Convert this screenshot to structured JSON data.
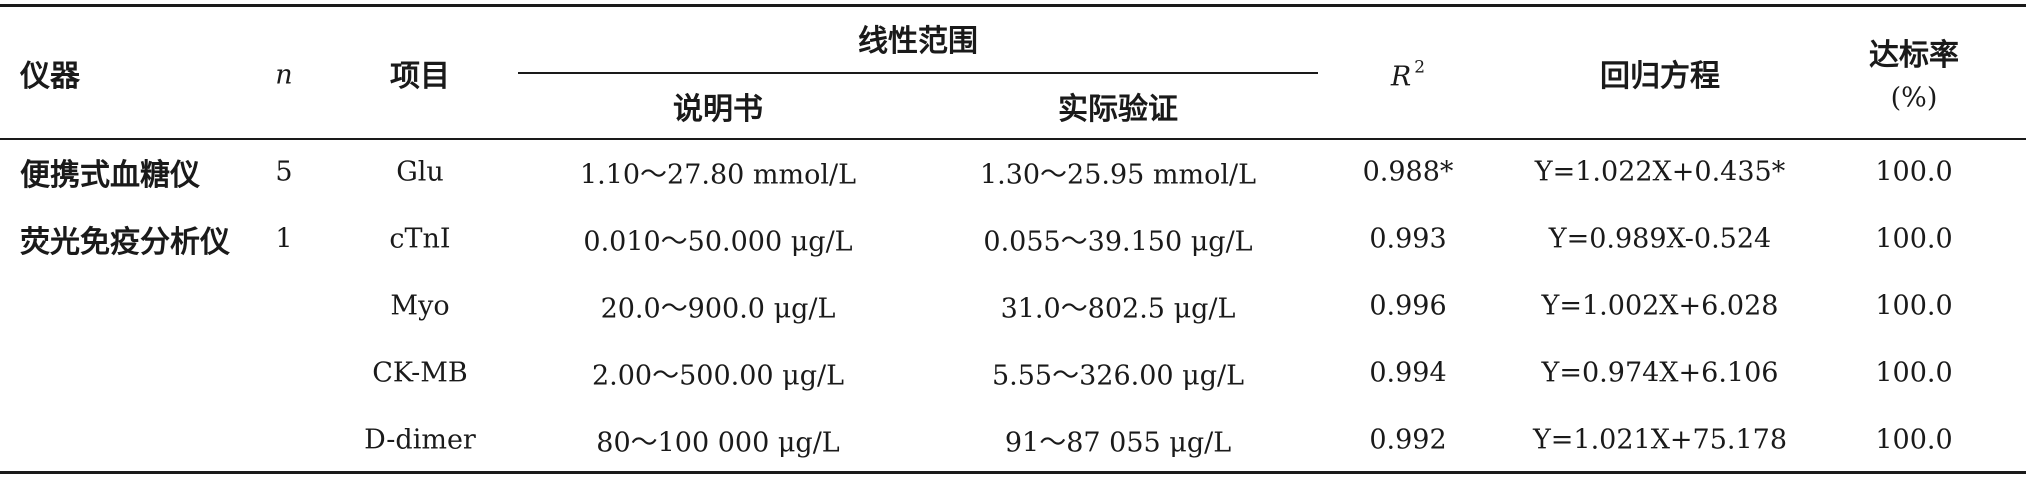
{
  "table": {
    "headers": {
      "instrument": "仪器",
      "n": "n",
      "item": "项目",
      "linear_range": "线性范围",
      "manual": "说明书",
      "actual": "实际验证",
      "r2": "R",
      "r2_sup": "2",
      "regression": "回归方程",
      "pass_rate_line1": "达标率",
      "pass_rate_line2": "(%)"
    },
    "rows": [
      {
        "instrument": "便携式血糖仪",
        "n": "5",
        "item": "Glu",
        "manual": "1.10～27.80 mmol/L",
        "actual": "1.30～25.95 mmol/L",
        "r2": "0.988*",
        "regression": "Y=1.022X+0.435*",
        "rate": "100.0"
      },
      {
        "instrument": "荧光免疫分析仪",
        "n": "1",
        "item": "cTnI",
        "manual": "0.010～50.000 μg/L",
        "actual": "0.055～39.150 μg/L",
        "r2": "0.993",
        "regression": "Y=0.989X-0.524",
        "rate": "100.0"
      },
      {
        "instrument": "",
        "n": "",
        "item": "Myo",
        "manual": "20.0～900.0 μg/L",
        "actual": "31.0～802.5 μg/L",
        "r2": "0.996",
        "regression": "Y=1.002X+6.028",
        "rate": "100.0"
      },
      {
        "instrument": "",
        "n": "",
        "item": "CK-MB",
        "manual": "2.00～500.00 μg/L",
        "actual": "5.55～326.00 μg/L",
        "r2": "0.994",
        "regression": "Y=0.974X+6.106",
        "rate": "100.0"
      },
      {
        "instrument": "",
        "n": "",
        "item": "D-dimer",
        "manual": "80～100 000 μg/L",
        "actual": "91～87 055 μg/L",
        "r2": "0.992",
        "regression": "Y=1.021X+75.178",
        "rate": "100.0"
      }
    ]
  }
}
